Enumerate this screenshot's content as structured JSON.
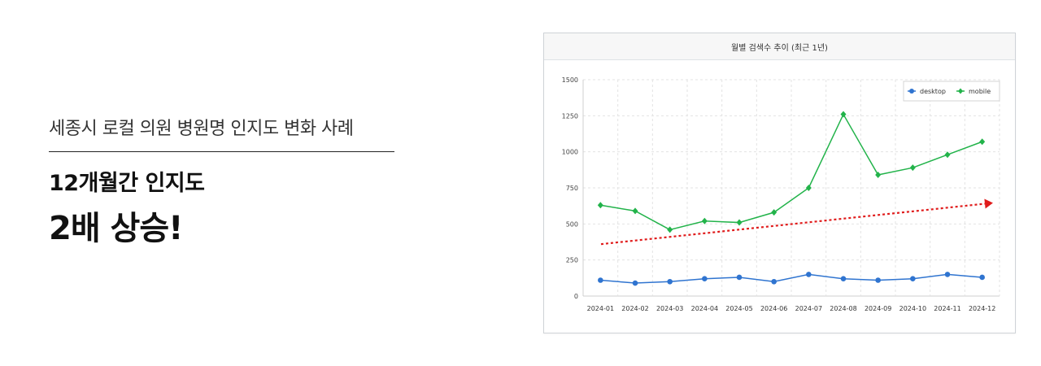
{
  "headline": {
    "subtitle": "세종시 로컬 의원 병원명 인지도 변화 사례",
    "line1": "12개월간 인지도",
    "line2": "2배 상승!"
  },
  "chart_data": {
    "type": "line",
    "title": "월별 검색수 추이 (최근 1년)",
    "xlabel": "",
    "ylabel": "",
    "categories": [
      "2024-01",
      "2024-02",
      "2024-03",
      "2024-04",
      "2024-05",
      "2024-06",
      "2024-07",
      "2024-08",
      "2024-09",
      "2024-10",
      "2024-11",
      "2024-12"
    ],
    "ylim": [
      0,
      1500
    ],
    "yticks": [
      0,
      250,
      500,
      750,
      1000,
      1250,
      1500
    ],
    "grid": true,
    "legend_position": "top-right",
    "series": [
      {
        "name": "desktop",
        "color": "#2f74d0",
        "marker": "circle",
        "values": [
          110,
          90,
          100,
          120,
          130,
          100,
          150,
          120,
          110,
          120,
          150,
          130
        ]
      },
      {
        "name": "mobile",
        "color": "#22b34a",
        "marker": "diamond",
        "values": [
          630,
          590,
          460,
          520,
          510,
          580,
          750,
          1260,
          840,
          890,
          980,
          1070
        ]
      }
    ],
    "trend_arrow": {
      "color": "#e01c1c",
      "style": "dotted",
      "start_value": 360,
      "end_value": 640
    }
  }
}
